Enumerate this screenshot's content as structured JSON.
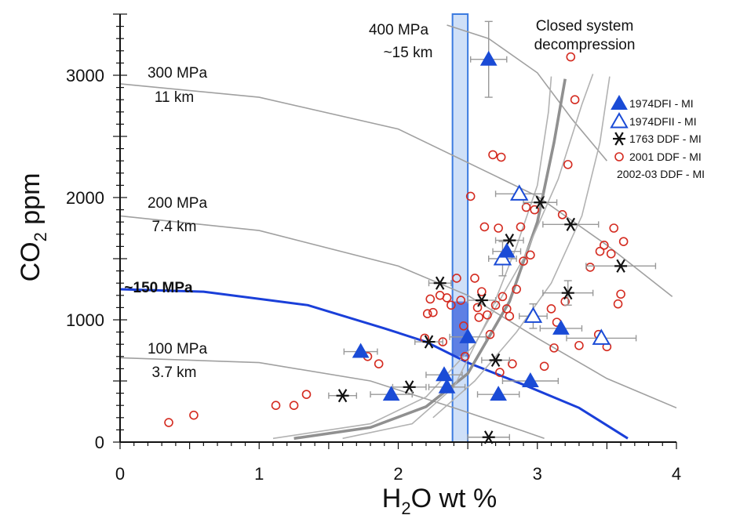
{
  "chart_data": {
    "type": "scatter",
    "title": "",
    "xlabel": {
      "main": "H",
      "sub": "2",
      "rest": "O wt %"
    },
    "ylabel": {
      "main": "CO",
      "sub": "2",
      "rest": " ppm"
    },
    "xlim": [
      0,
      4
    ],
    "ylim": [
      0,
      3500
    ],
    "x_ticks": [
      "0",
      "1",
      "2",
      "3",
      "4"
    ],
    "y_ticks": [
      "0",
      "1000",
      "2000",
      "3000"
    ],
    "isobar_labels": [
      {
        "id": "p400",
        "line1": "400 MPa",
        "line2": "~15 km"
      },
      {
        "id": "p300",
        "line1": "300 MPa",
        "line2": "11 km"
      },
      {
        "id": "p200",
        "line1": "200 MPa",
        "line2": "7.4 km"
      },
      {
        "id": "p150",
        "line1": "~150 MPa",
        "line2": ""
      },
      {
        "id": "p100",
        "line1": "100 MPa",
        "line2": "3.7 km"
      }
    ],
    "annotation": {
      "line1": "Closed system",
      "line2": "decompression"
    },
    "isobars": [
      {
        "id": "p400",
        "points": [
          [
            2.35,
            3410
          ],
          [
            2.65,
            3300
          ],
          [
            3.0,
            3020
          ],
          [
            3.25,
            2640
          ],
          [
            3.5,
            2300
          ]
        ]
      },
      {
        "id": "p300",
        "points": [
          [
            0.0,
            2930
          ],
          [
            1.0,
            2820
          ],
          [
            2.0,
            2560
          ],
          [
            3.0,
            2010
          ],
          [
            3.5,
            1610
          ],
          [
            3.97,
            1190
          ]
        ]
      },
      {
        "id": "p200",
        "points": [
          [
            0.0,
            1850
          ],
          [
            1.0,
            1730
          ],
          [
            2.0,
            1440
          ],
          [
            2.5,
            1200
          ],
          [
            3.0,
            850
          ],
          [
            3.5,
            520
          ],
          [
            4.0,
            280
          ]
        ]
      },
      {
        "id": "p150",
        "points": [
          [
            0.0,
            1250
          ],
          [
            0.6,
            1230
          ],
          [
            1.35,
            1120
          ],
          [
            1.9,
            930
          ],
          [
            2.2,
            820
          ],
          [
            2.5,
            650
          ],
          [
            2.9,
            470
          ],
          [
            3.3,
            280
          ],
          [
            3.65,
            30
          ]
        ]
      },
      {
        "id": "p100",
        "points": [
          [
            0.0,
            690
          ],
          [
            1.0,
            650
          ],
          [
            1.8,
            500
          ],
          [
            2.4,
            280
          ],
          [
            2.9,
            90
          ],
          [
            3.05,
            30
          ]
        ]
      }
    ],
    "decompression_paths": [
      {
        "id": "path-thick",
        "points": [
          [
            1.25,
            30
          ],
          [
            1.8,
            120
          ],
          [
            2.2,
            290
          ],
          [
            2.5,
            560
          ],
          [
            2.8,
            1150
          ],
          [
            3.0,
            1800
          ],
          [
            3.12,
            2450
          ],
          [
            3.2,
            2970
          ]
        ]
      },
      {
        "id": "path-outer",
        "points": [
          [
            1.1,
            30
          ],
          [
            1.8,
            150
          ],
          [
            2.2,
            370
          ],
          [
            2.55,
            800
          ],
          [
            2.9,
            1500
          ],
          [
            3.15,
            2150
          ],
          [
            3.32,
            2760
          ],
          [
            3.4,
            3010
          ]
        ]
      },
      {
        "id": "path-inner",
        "points": [
          [
            1.6,
            30
          ],
          [
            2.1,
            150
          ],
          [
            2.4,
            450
          ],
          [
            2.65,
            1020
          ],
          [
            2.85,
            1600
          ],
          [
            3.0,
            2100
          ],
          [
            3.08,
            2700
          ],
          [
            3.1,
            2990
          ]
        ]
      },
      {
        "id": "path-right",
        "points": [
          [
            2.25,
            200
          ],
          [
            2.55,
            500
          ],
          [
            2.85,
            900
          ],
          [
            3.1,
            1300
          ],
          [
            3.32,
            1850
          ],
          [
            3.45,
            2450
          ],
          [
            3.52,
            2990
          ]
        ]
      }
    ],
    "shaded_band": {
      "x": [
        2.39,
        2.5
      ],
      "y": [
        0,
        3500
      ]
    },
    "series": [
      {
        "name": "1974DFI - MI",
        "marker": "triangle-filled",
        "color": "#1a4bd6",
        "points": [
          [
            2.65,
            3130,
            0.13,
            310
          ],
          [
            1.73,
            740,
            0.12,
            0
          ],
          [
            1.95,
            390,
            0.15,
            0
          ],
          [
            2.33,
            550,
            0.13,
            0
          ],
          [
            2.35,
            450,
            0.13,
            0
          ],
          [
            2.5,
            860,
            0.13,
            0
          ],
          [
            2.72,
            390,
            0.15,
            0
          ],
          [
            2.78,
            1560,
            0.1,
            0
          ],
          [
            2.95,
            500,
            0.2,
            0
          ],
          [
            3.17,
            930,
            0.15,
            0
          ]
        ]
      },
      {
        "name": "1974DFII - MI",
        "marker": "triangle-open",
        "color": "#1a4bd6",
        "points": [
          [
            2.87,
            2030,
            0.17,
            0
          ],
          [
            2.75,
            1500,
            0.1,
            140
          ],
          [
            2.97,
            1030,
            0.1,
            100
          ],
          [
            3.46,
            850,
            0.25,
            0
          ]
        ]
      },
      {
        "name": "1763 DDF - MI",
        "marker": "asterisk",
        "color": "#111111",
        "points": [
          [
            1.6,
            380,
            0.1,
            0
          ],
          [
            2.08,
            450,
            0.12,
            0
          ],
          [
            2.22,
            820,
            0.1,
            0
          ],
          [
            2.3,
            1300,
            0.08,
            0
          ],
          [
            2.6,
            1160,
            0.1,
            0
          ],
          [
            2.7,
            670,
            0.1,
            0
          ],
          [
            2.8,
            1650,
            0.1,
            0
          ],
          [
            3.02,
            1960,
            0.12,
            0
          ],
          [
            3.22,
            1220,
            0.18,
            100
          ],
          [
            3.24,
            1780,
            0.2,
            0
          ],
          [
            3.6,
            1440,
            0.25,
            0
          ],
          [
            2.65,
            40,
            0.15,
            0
          ]
        ]
      },
      {
        "name": "2001 DDF - MI",
        "marker": "circle-open",
        "color": "#d42b20",
        "points": [
          [
            0.35,
            160
          ],
          [
            0.53,
            220
          ],
          [
            1.12,
            300
          ],
          [
            1.25,
            300
          ],
          [
            1.34,
            390
          ],
          [
            1.78,
            700
          ],
          [
            1.86,
            640
          ],
          [
            2.19,
            850
          ],
          [
            2.21,
            1050
          ],
          [
            2.23,
            1170
          ],
          [
            2.25,
            1060
          ],
          [
            2.3,
            1200
          ],
          [
            2.32,
            820
          ],
          [
            2.35,
            1180
          ],
          [
            2.38,
            1120
          ],
          [
            2.42,
            1340
          ],
          [
            2.45,
            1160
          ],
          [
            2.47,
            950
          ],
          [
            2.48,
            700
          ],
          [
            2.52,
            2010
          ],
          [
            2.55,
            1340
          ],
          [
            2.57,
            1100
          ],
          [
            2.58,
            1020
          ],
          [
            2.6,
            1230
          ],
          [
            2.62,
            1760
          ],
          [
            2.64,
            1040
          ],
          [
            2.66,
            880
          ],
          [
            2.68,
            2350
          ],
          [
            2.7,
            1120
          ],
          [
            2.72,
            1750
          ],
          [
            2.74,
            2330
          ],
          [
            2.75,
            1190
          ],
          [
            2.78,
            1090
          ],
          [
            2.8,
            1030
          ],
          [
            2.82,
            640
          ],
          [
            2.85,
            1250
          ],
          [
            2.88,
            1760
          ],
          [
            2.9,
            1480
          ],
          [
            2.92,
            1920
          ],
          [
            2.95,
            1530
          ],
          [
            2.98,
            1900
          ],
          [
            3.05,
            620
          ],
          [
            3.1,
            1090
          ],
          [
            3.12,
            770
          ],
          [
            3.14,
            980
          ],
          [
            3.18,
            1860
          ],
          [
            3.2,
            1150
          ],
          [
            3.22,
            2270
          ],
          [
            3.24,
            3150
          ],
          [
            3.27,
            2800
          ],
          [
            3.3,
            790
          ],
          [
            3.38,
            1430
          ],
          [
            3.45,
            1560
          ],
          [
            3.48,
            1610
          ],
          [
            3.5,
            780
          ],
          [
            3.53,
            1540
          ],
          [
            3.55,
            1750
          ],
          [
            3.58,
            1130
          ],
          [
            3.6,
            1210
          ],
          [
            3.62,
            1640
          ],
          [
            3.44,
            880
          ],
          [
            2.73,
            570
          ]
        ]
      },
      {
        "name": "2002-03 DDF - MI",
        "marker": "none",
        "color": "#111111",
        "points": []
      }
    ],
    "legend": {
      "position": "right"
    }
  }
}
